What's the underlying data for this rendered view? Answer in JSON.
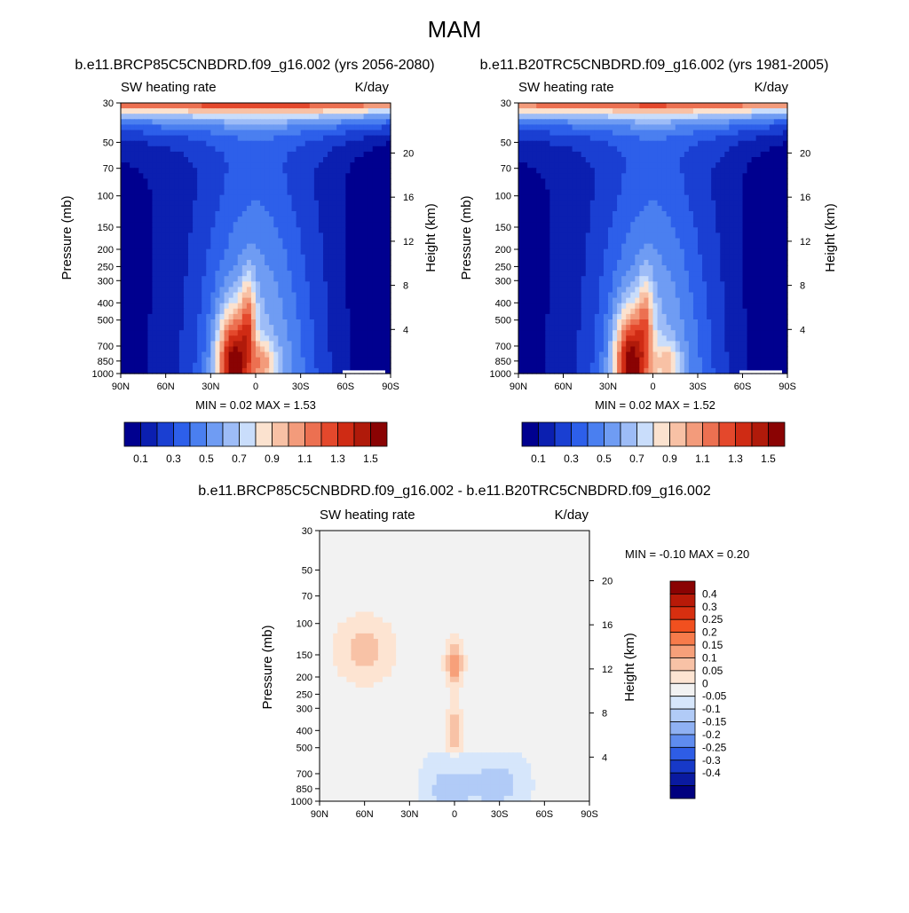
{
  "figure": {
    "title": "MAM"
  },
  "chart_data": [
    {
      "type": "heatmap",
      "id": "p1",
      "title": "b.e11.BRCP85C5CNBDRD.f09_g16.002 (yrs 2056-2080)",
      "left_label": "SW heating rate",
      "right_label": "K/day",
      "ylabel": "Pressure (mb)",
      "ylabel_right": "Height (km)",
      "x_ticks": [
        "90N",
        "60N",
        "30N",
        "0",
        "30S",
        "60S",
        "90S"
      ],
      "y_ticks": [
        "30",
        "50",
        "70",
        "100",
        "150",
        "200",
        "250",
        "300",
        "400",
        "500",
        "700",
        "850",
        "1000"
      ],
      "height_ticks": [
        "20",
        "16",
        "12",
        "8",
        "4"
      ],
      "stats": "MIN =   0.02  MAX =   1.53",
      "min": 0.02,
      "max": 1.53,
      "colorbar_labels": [
        "0.1",
        "0.3",
        "0.5",
        "0.7",
        "0.9",
        "1.1",
        "1.3",
        "1.5"
      ],
      "peaks": [
        {
          "lat": 15,
          "p": 890,
          "value": 1.53,
          "sx": 11,
          "sp": 0.7
        },
        {
          "lat": 5,
          "p": 480,
          "value": 1.0,
          "sx": 5,
          "sp": 0.55
        },
        {
          "lat": -5,
          "p": 850,
          "value": 0.9,
          "sx": 8,
          "sp": 0.25
        }
      ],
      "top_heating": 1.25
    },
    {
      "type": "heatmap",
      "id": "p2",
      "title": "b.e11.B20TRC5CNBDRD.f09_g16.002 (yrs 1981-2005)",
      "left_label": "SW heating rate",
      "right_label": "K/day",
      "ylabel": "Pressure (mb)",
      "ylabel_right": "Height (km)",
      "x_ticks": [
        "90N",
        "60N",
        "30N",
        "0",
        "30S",
        "60S",
        "90S"
      ],
      "y_ticks": [
        "30",
        "50",
        "70",
        "100",
        "150",
        "200",
        "250",
        "300",
        "400",
        "500",
        "700",
        "850",
        "1000"
      ],
      "height_ticks": [
        "20",
        "16",
        "12",
        "8",
        "4"
      ],
      "stats": "MIN =   0.02  MAX =   1.52",
      "min": 0.02,
      "max": 1.52,
      "colorbar_labels": [
        "0.1",
        "0.3",
        "0.5",
        "0.7",
        "0.9",
        "1.1",
        "1.3",
        "1.5"
      ],
      "peaks": [
        {
          "lat": 15,
          "p": 880,
          "value": 1.52,
          "sx": 11,
          "sp": 0.7
        },
        {
          "lat": 5,
          "p": 480,
          "value": 0.95,
          "sx": 5,
          "sp": 0.55
        },
        {
          "lat": -10,
          "p": 850,
          "value": 0.85,
          "sx": 8,
          "sp": 0.25
        }
      ],
      "top_heating": 1.2
    },
    {
      "type": "heatmap",
      "id": "p3",
      "title": "b.e11.BRCP85C5CNBDRD.f09_g16.002 - b.e11.B20TRC5CNBDRD.f09_g16.002",
      "left_label": "SW heating rate",
      "right_label": "K/day",
      "ylabel": "Pressure (mb)",
      "ylabel_right": "Height (km)",
      "x_ticks": [
        "90N",
        "60N",
        "30N",
        "0",
        "30S",
        "60S",
        "90S"
      ],
      "y_ticks": [
        "30",
        "50",
        "70",
        "100",
        "150",
        "200",
        "250",
        "300",
        "400",
        "500",
        "700",
        "850",
        "1000"
      ],
      "height_ticks": [
        "20",
        "16",
        "12",
        "8",
        "4"
      ],
      "stats": "MIN =  -0.10  MAX =   0.20",
      "min": -0.1,
      "max": 0.2,
      "colorbar_labels": [
        "0.4",
        "0.3",
        "0.25",
        "0.2",
        "0.15",
        "0.1",
        "0.05",
        "0",
        "-0.05",
        "-0.1",
        "-0.15",
        "-0.2",
        "-0.25",
        "-0.3",
        "-0.4"
      ],
      "features": [
        {
          "lat": 0,
          "p": 170,
          "value": 0.17,
          "sx": 5,
          "sp": 0.25
        },
        {
          "lat": 0,
          "p": 400,
          "value": 0.13,
          "sx": 4,
          "sp": 0.3
        },
        {
          "lat": 60,
          "p": 140,
          "value": 0.1,
          "sx": 16,
          "sp": 0.35
        },
        {
          "lat": 5,
          "p": 850,
          "value": -0.08,
          "sx": 12,
          "sp": 0.25
        },
        {
          "lat": -30,
          "p": 800,
          "value": -0.07,
          "sx": 18,
          "sp": 0.3
        }
      ]
    }
  ],
  "colors": {
    "abs_palette": [
      "#00008f",
      "#0b1fb0",
      "#1a3fd2",
      "#2d5fea",
      "#4a7ff0",
      "#6f9cf3",
      "#9dbcf7",
      "#c9ddfb",
      "#fbe2cf",
      "#f8c1a5",
      "#f39b7b",
      "#ec7051",
      "#e4482c",
      "#cf2b14",
      "#b01a0a",
      "#8a0303"
    ],
    "diff_palette": [
      "#8a0303",
      "#b81a08",
      "#d72f10",
      "#f1501f",
      "#f77b4b",
      "#f7a07a",
      "#f8c2a6",
      "#fde4d2",
      "#f2f2f2",
      "#d6e6fb",
      "#b1cbf7",
      "#8fb1f3",
      "#5f8cef",
      "#2e5de6",
      "#1739c8",
      "#0a1aa0",
      "#00007f"
    ]
  }
}
